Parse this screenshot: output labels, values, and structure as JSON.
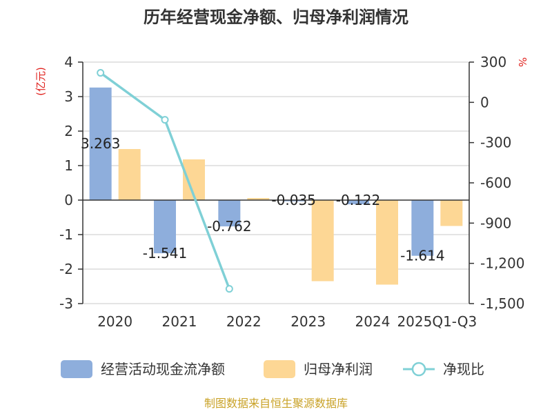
{
  "chart_data": {
    "type": "bar",
    "title": "历年经营现金净额、归母净利润情况",
    "categories": [
      "2020",
      "2021",
      "2022",
      "2023",
      "2024",
      "2025Q1-Q3"
    ],
    "y_left": {
      "unit": "(亿元)",
      "ticks": [
        "4",
        "3",
        "2",
        "1",
        "0",
        "-1",
        "-2",
        "-3"
      ],
      "range": [
        -3,
        4
      ]
    },
    "y_right": {
      "unit": "%",
      "ticks": [
        "300",
        "0",
        "-300",
        "-600",
        "-900",
        "-1,200",
        "-1,500"
      ],
      "range": [
        -1500,
        300
      ]
    },
    "series": [
      {
        "name": "经营活动现金流净额",
        "kind": "bar",
        "axis": "left",
        "color": "#8eaedc",
        "values": [
          3.263,
          -1.541,
          -0.762,
          -0.035,
          -0.122,
          -1.614
        ],
        "labels": [
          "3.263",
          "-1.541",
          "-0.762",
          "-0.035",
          "-0.122",
          "-1.614"
        ]
      },
      {
        "name": "归母净利润",
        "kind": "bar",
        "axis": "left",
        "color": "#fdd795",
        "values": [
          1.48,
          1.18,
          0.06,
          -2.35,
          -2.45,
          -0.75
        ]
      },
      {
        "name": "净现比",
        "kind": "line",
        "axis": "right",
        "color": "#7fd0d6",
        "values": [
          220,
          -130,
          -1390,
          null,
          null,
          null
        ]
      }
    ],
    "legend_position": "bottom",
    "grid": true
  },
  "footer": {
    "source": "制图数据来自恒生聚源数据库"
  }
}
